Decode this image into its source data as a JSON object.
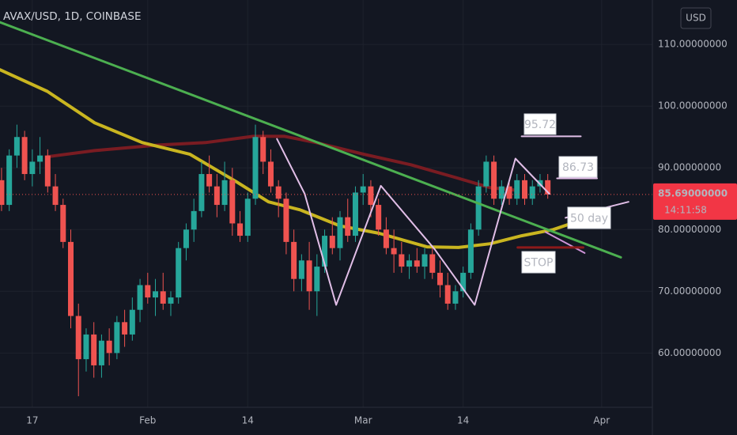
{
  "chart_data": {
    "type": "candlestick",
    "title": "AVAX/USD, 1D, COINBASE",
    "currency": "USD",
    "x": [
      -4,
      -3,
      -2,
      -1,
      0,
      1,
      2,
      3,
      4,
      5,
      6,
      7,
      8,
      9,
      10,
      11,
      12,
      13,
      14,
      15,
      16,
      17,
      18,
      19,
      20,
      21,
      22,
      23,
      24,
      25,
      26,
      27,
      28,
      29,
      30,
      31,
      32,
      33,
      34,
      35,
      36,
      37,
      38,
      39,
      40,
      41,
      42,
      43,
      44,
      45,
      46,
      47,
      48,
      49,
      50,
      51,
      52,
      53,
      54,
      55,
      56,
      57,
      58,
      59,
      60,
      61,
      62,
      63,
      64,
      65,
      66,
      67
    ],
    "open": [
      88,
      84,
      92,
      95,
      89,
      91,
      92,
      87,
      84,
      78,
      66,
      59,
      63,
      58,
      62,
      60,
      65,
      63,
      67,
      71,
      69,
      70,
      68,
      69,
      77,
      80,
      83,
      89,
      87,
      84,
      88,
      81,
      79,
      85,
      95,
      91,
      87,
      85,
      78,
      72,
      75,
      70,
      74,
      79,
      77,
      82,
      79,
      86,
      87,
      84,
      80,
      77,
      76,
      74,
      75,
      74,
      76,
      73,
      71,
      68,
      70,
      73,
      80,
      87,
      91,
      85,
      87,
      85,
      88,
      85,
      87,
      88
    ],
    "high": [
      90,
      93,
      97,
      96,
      93,
      95,
      93,
      89,
      85,
      80,
      68,
      64,
      65,
      63,
      64,
      66,
      67,
      69,
      72,
      73,
      72,
      73,
      70,
      78,
      81,
      85,
      91,
      92,
      89,
      91,
      90,
      83,
      86,
      97,
      96,
      93,
      88,
      86,
      80,
      76,
      78,
      76,
      80,
      82,
      83,
      85,
      87,
      89,
      88,
      85,
      82,
      80,
      78,
      76,
      77,
      77,
      77,
      75,
      73,
      71,
      74,
      81,
      88,
      92,
      92,
      88,
      88,
      89,
      89,
      88,
      89,
      89
    ],
    "low": [
      83,
      83,
      90,
      88,
      87,
      89,
      86,
      83,
      77,
      64,
      53,
      57,
      56,
      56,
      58,
      59,
      61,
      62,
      65,
      68,
      66,
      67,
      66,
      68,
      75,
      78,
      82,
      86,
      82,
      83,
      79,
      78,
      78,
      84,
      89,
      86,
      82,
      76,
      70,
      70,
      67,
      66,
      73,
      76,
      75,
      78,
      78,
      84,
      82,
      79,
      76,
      73,
      73,
      72,
      73,
      72,
      72,
      69,
      67,
      67,
      69,
      72,
      79,
      86,
      84,
      84,
      84,
      84,
      84,
      84,
      86,
      85
    ],
    "close": [
      84,
      92,
      95,
      89,
      91,
      92,
      87,
      84,
      78,
      66,
      59,
      63,
      58,
      62,
      60,
      65,
      63,
      67,
      71,
      69,
      70,
      68,
      69,
      77,
      80,
      83,
      89,
      87,
      84,
      88,
      81,
      79,
      85,
      95,
      91,
      87,
      85,
      78,
      72,
      75,
      70,
      74,
      79,
      77,
      82,
      79,
      86,
      87,
      84,
      80,
      77,
      76,
      74,
      75,
      74,
      76,
      73,
      71,
      68,
      70,
      73,
      80,
      87,
      91,
      85,
      87,
      85,
      88,
      85,
      87,
      88,
      85.69
    ],
    "up_color": "#26a69a",
    "down_color": "#ef5350",
    "xlim": [
      -4.2,
      80.6
    ],
    "xticks": [
      {
        "value": 0,
        "label": "17"
      },
      {
        "value": 15,
        "label": "Feb"
      },
      {
        "value": 28,
        "label": "14"
      },
      {
        "value": 43,
        "label": "Mar"
      },
      {
        "value": 56,
        "label": "14"
      },
      {
        "value": 74,
        "label": "Apr"
      }
    ],
    "ylim": [
      51.2,
      117.2
    ],
    "yticks": [
      {
        "value": 60,
        "label": "60.00000000"
      },
      {
        "value": 70,
        "label": "70.00000000"
      },
      {
        "value": 80,
        "label": "80.00000000"
      },
      {
        "value": 90,
        "label": "90.00000000"
      },
      {
        "value": 100,
        "label": "100.00000000"
      },
      {
        "value": 110,
        "label": "110.00000000"
      }
    ],
    "grid": true,
    "last_price": {
      "value": 85.69,
      "label": "85.69000000"
    },
    "countdown": "14:11:58",
    "lines": [
      {
        "color": "#7a1c22",
        "width": 4,
        "x": [
          1.95,
          8.1,
          16.4,
          22.5,
          28.7,
          32.8,
          36.9,
          43.1,
          49.2,
          55.4,
          59.5,
          62.6
        ],
        "values": [
          91.8,
          92.8,
          93.7,
          94.1,
          95.1,
          95.1,
          94.1,
          92.2,
          90.5,
          88.3,
          86.8,
          86.4
        ]
      },
      {
        "color": "#c9b520",
        "width": 4,
        "x": [
          -4.2,
          1.95,
          8.1,
          14.3,
          20.5,
          26.6,
          30.7,
          34.8,
          40.0,
          45.1,
          51.3,
          55.4,
          59.5,
          63.6,
          67.7,
          70.8
        ],
        "values": [
          105.9,
          102.4,
          97.3,
          94.1,
          92.2,
          87.7,
          84.5,
          83.2,
          80.6,
          79.4,
          77.2,
          77.1,
          77.7,
          79.0,
          80.0,
          81.3
        ]
      },
      {
        "color": "#4caf50",
        "width": 3,
        "x": [
          -4.2,
          76.5
        ],
        "values": [
          113.6,
          75.5
        ]
      },
      {
        "color": "#e1bee7",
        "width": 2,
        "x": [
          31.8,
          35.4,
          39.5,
          45.3,
          52.3,
          57.5,
          62.8,
          67.2
        ],
        "values": [
          94.7,
          85.8,
          67.8,
          87.1,
          76.8,
          67.8,
          91.5,
          85.8
        ]
      },
      {
        "color": "#e1bee7",
        "width": 2,
        "x": [
          69.3,
          77.5
        ],
        "values": [
          81.9,
          84.5
        ]
      },
      {
        "color": "#ce93d8",
        "width": 2,
        "x": [
          66.7,
          71.8
        ],
        "values": [
          79.6,
          76.2
        ]
      },
      {
        "color": "#e1bee7",
        "width": 2,
        "x": [
          63.6,
          71.3
        ],
        "values": [
          95.1,
          95.1
        ]
      },
      {
        "color": "#e1bee7",
        "width": 2,
        "x": [
          68.2,
          73.4
        ],
        "values": [
          88.3,
          88.3
        ]
      },
      {
        "color": "#8b1a1a",
        "width": 3,
        "x": [
          63.1,
          71.6
        ],
        "values": [
          77.1,
          77.1
        ]
      }
    ],
    "annotations": [
      {
        "text": "95.72",
        "color": "#2962ff"
      },
      {
        "text": "86.73",
        "color": "#2962ff"
      },
      {
        "text": "50 day",
        "color": "#2962ff"
      },
      {
        "text": "STOP",
        "color": "#b71c1c"
      }
    ]
  }
}
